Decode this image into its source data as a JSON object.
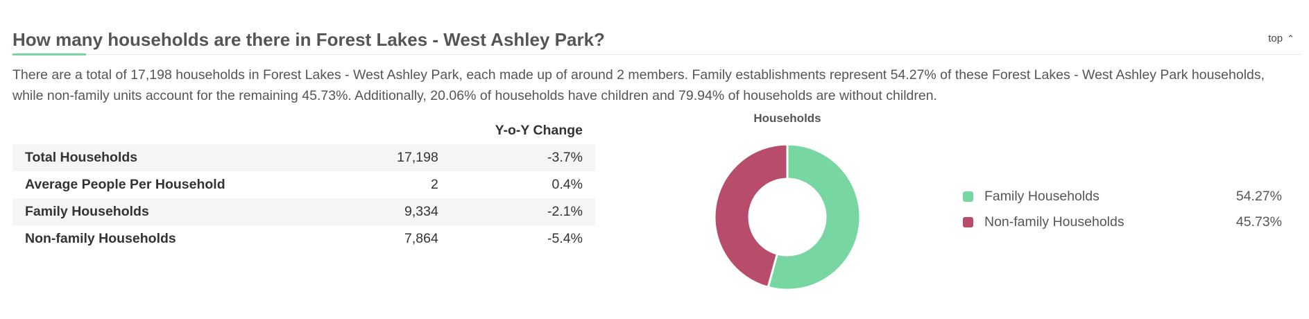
{
  "header": {
    "title": "How many households are there in Forest Lakes - West Ashley Park?",
    "top_link": "top"
  },
  "description": "There are a total of 17,198 households in Forest Lakes - West Ashley Park, each made up of around 2 members. Family establishments represent 54.27% of these Forest Lakes - West Ashley Park households, while non-family units account for the remaining 45.73%. Additionally, 20.06% of households have children and 79.94% of households are without children.",
  "table": {
    "columns": [
      "",
      "",
      "Y-o-Y Change"
    ],
    "rows": [
      {
        "label": "Total Households",
        "value": "17,198",
        "change": "-3.7%"
      },
      {
        "label": "Average People Per Household",
        "value": "2",
        "change": "0.4%"
      },
      {
        "label": "Family Households",
        "value": "9,334",
        "change": "-2.1%"
      },
      {
        "label": "Non-family Households",
        "value": "7,864",
        "change": "-5.4%"
      }
    ]
  },
  "chart_data": {
    "type": "pie",
    "title": "Households",
    "donut": true,
    "labels": [
      "Family Households",
      "Non-family Households"
    ],
    "values": [
      54.27,
      45.73
    ],
    "value_labels": [
      "54.27%",
      "45.73%"
    ],
    "colors": [
      "#78d6a3",
      "#b84d6b"
    ],
    "legend_position": "right"
  },
  "icons": {
    "top_chevron": "chevron-up-icon"
  }
}
